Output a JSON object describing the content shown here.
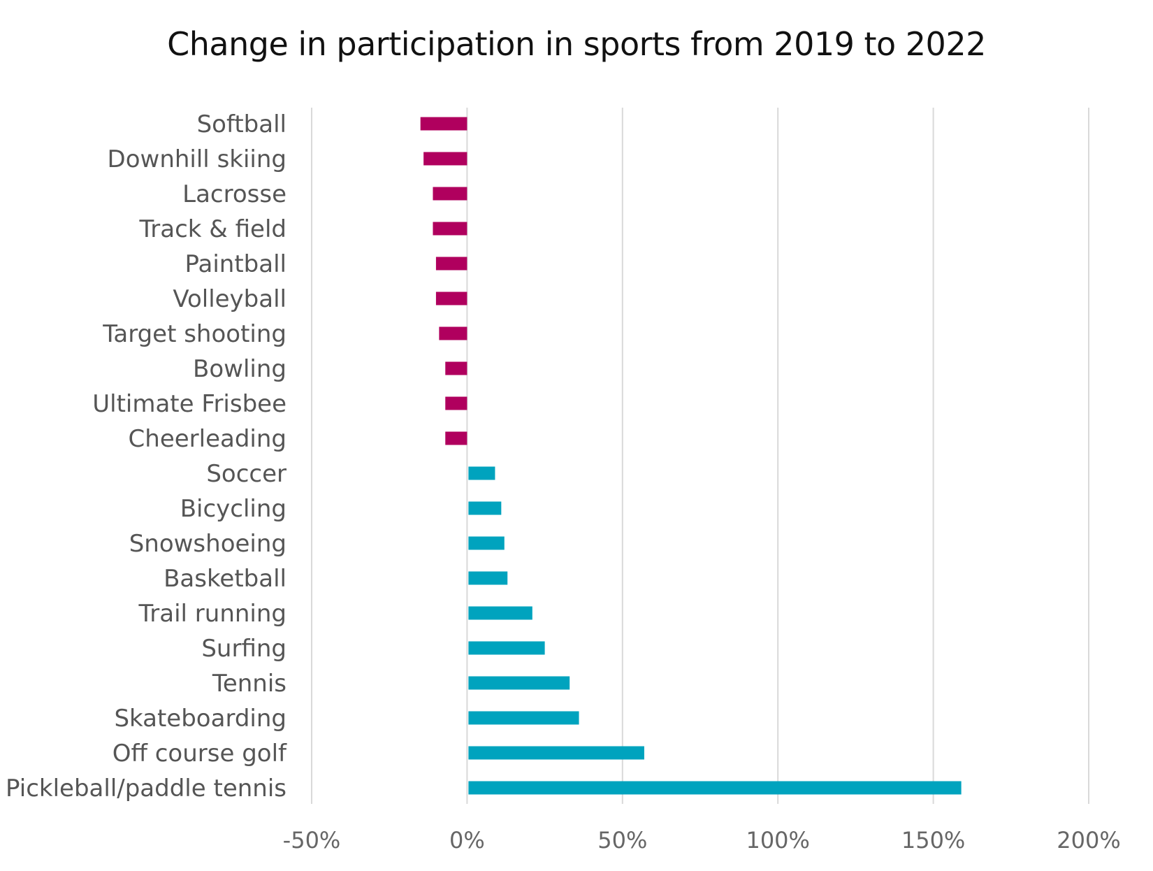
{
  "chart_data": {
    "type": "bar",
    "orientation": "horizontal",
    "title": "Change in participation in sports from 2019 to 2022",
    "xlabel": "",
    "ylabel": "",
    "categories": [
      "Softball",
      "Downhill skiing",
      "Lacrosse",
      "Track & field",
      "Paintball",
      "Volleyball",
      "Target shooting",
      "Bowling",
      "Ultimate Frisbee",
      "Cheerleading",
      "Soccer",
      "Bicycling",
      "Snowshoeing",
      "Basketball",
      "Trail running",
      "Surfing",
      "Tennis",
      "Skateboarding",
      "Off course golf",
      "Pickleball/paddle tennis"
    ],
    "values": [
      -15,
      -14,
      -11,
      -11,
      -10,
      -10,
      -9,
      -7,
      -7,
      -7,
      9,
      11,
      12,
      13,
      21,
      25,
      33,
      36,
      57,
      159
    ],
    "xlim": [
      -50,
      200
    ],
    "xticks": [
      -50,
      0,
      50,
      100,
      150,
      200
    ],
    "xtick_labels": [
      "-50%",
      "0%",
      "50%",
      "100%",
      "150%",
      "200%"
    ],
    "grid": true,
    "legend": "none",
    "colors": {
      "negative": "#b0005e",
      "positive": "#00a3be"
    }
  }
}
